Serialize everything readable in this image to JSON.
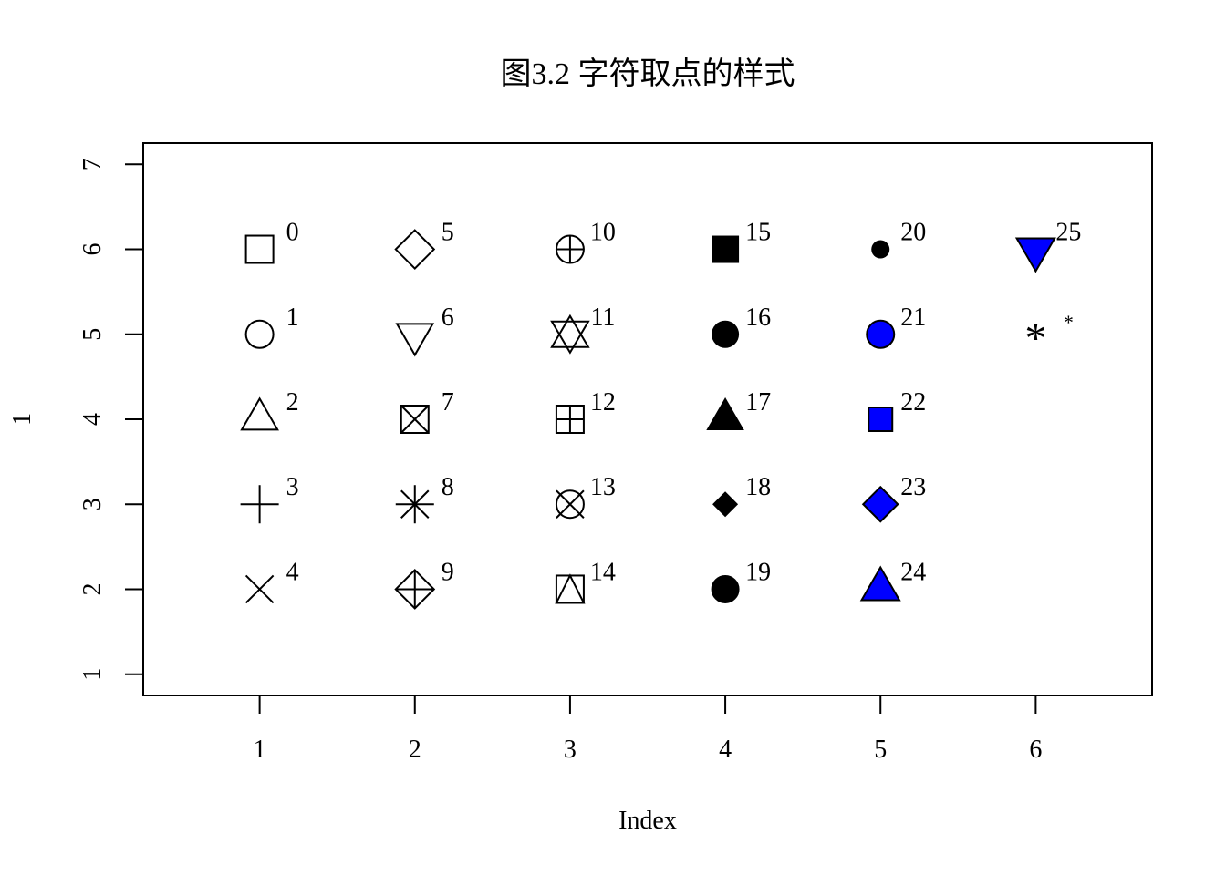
{
  "chart_data": {
    "type": "scatter",
    "title": "图3.2 字符取点的样式",
    "xlabel": "Index",
    "ylabel": "1",
    "xlim": [
      0.25,
      6.75
    ],
    "ylim": [
      0.75,
      7.25
    ],
    "x_ticks": [
      "1",
      "2",
      "3",
      "4",
      "5",
      "6"
    ],
    "y_ticks": [
      "1",
      "2",
      "3",
      "4",
      "5",
      "6",
      "7"
    ],
    "fill_color": "#0000ff",
    "points": [
      {
        "x": 1,
        "y": 6,
        "pch": 0,
        "label": "0"
      },
      {
        "x": 1,
        "y": 5,
        "pch": 1,
        "label": "1"
      },
      {
        "x": 1,
        "y": 4,
        "pch": 2,
        "label": "2"
      },
      {
        "x": 1,
        "y": 3,
        "pch": 3,
        "label": "3"
      },
      {
        "x": 1,
        "y": 2,
        "pch": 4,
        "label": "4"
      },
      {
        "x": 2,
        "y": 6,
        "pch": 5,
        "label": "5"
      },
      {
        "x": 2,
        "y": 5,
        "pch": 6,
        "label": "6"
      },
      {
        "x": 2,
        "y": 4,
        "pch": 7,
        "label": "7"
      },
      {
        "x": 2,
        "y": 3,
        "pch": 8,
        "label": "8"
      },
      {
        "x": 2,
        "y": 2,
        "pch": 9,
        "label": "9"
      },
      {
        "x": 3,
        "y": 6,
        "pch": 10,
        "label": "10"
      },
      {
        "x": 3,
        "y": 5,
        "pch": 11,
        "label": "11"
      },
      {
        "x": 3,
        "y": 4,
        "pch": 12,
        "label": "12"
      },
      {
        "x": 3,
        "y": 3,
        "pch": 13,
        "label": "13"
      },
      {
        "x": 3,
        "y": 2,
        "pch": 14,
        "label": "14"
      },
      {
        "x": 4,
        "y": 6,
        "pch": 15,
        "label": "15"
      },
      {
        "x": 4,
        "y": 5,
        "pch": 16,
        "label": "16"
      },
      {
        "x": 4,
        "y": 4,
        "pch": 17,
        "label": "17"
      },
      {
        "x": 4,
        "y": 3,
        "pch": 18,
        "label": "18"
      },
      {
        "x": 4,
        "y": 2,
        "pch": 19,
        "label": "19"
      },
      {
        "x": 5,
        "y": 6,
        "pch": 20,
        "label": "20"
      },
      {
        "x": 5,
        "y": 5,
        "pch": 21,
        "label": "21"
      },
      {
        "x": 5,
        "y": 4,
        "pch": 22,
        "label": "22"
      },
      {
        "x": 5,
        "y": 3,
        "pch": 23,
        "label": "23"
      },
      {
        "x": 5,
        "y": 2,
        "pch": 24,
        "label": "24"
      },
      {
        "x": 6,
        "y": 6,
        "pch": 25,
        "label": "25"
      },
      {
        "x": 6,
        "y": 5,
        "pch": "*",
        "label": "*"
      }
    ]
  }
}
